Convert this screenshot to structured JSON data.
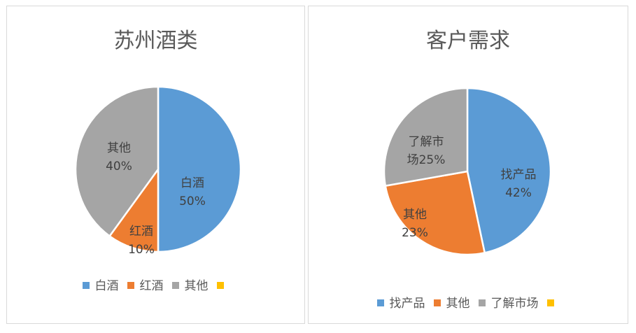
{
  "colors": {
    "blue": "#5b9bd5",
    "orange": "#ed7d31",
    "gray": "#a5a5a5",
    "yellow": "#ffc000"
  },
  "chart_data": [
    {
      "type": "pie",
      "title": "苏州酒类",
      "legend": [
        "白酒",
        "红酒",
        "其他",
        ""
      ],
      "legend_colors": [
        "#5b9bd5",
        "#ed7d31",
        "#a5a5a5",
        "#ffc000"
      ],
      "legend_position": "bottom",
      "slices": [
        {
          "name": "白酒",
          "value": 50,
          "label": "50%",
          "color": "#5b9bd5"
        },
        {
          "name": "红酒",
          "value": 10,
          "label": "10%",
          "color": "#ed7d31"
        },
        {
          "name": "其他",
          "value": 40,
          "label": "40%",
          "color": "#a5a5a5"
        }
      ]
    },
    {
      "type": "pie",
      "title": "客户需求",
      "legend": [
        "找产品",
        "其他",
        "了解市场",
        ""
      ],
      "legend_colors": [
        "#5b9bd5",
        "#ed7d31",
        "#a5a5a5",
        "#ffc000"
      ],
      "legend_position": "bottom",
      "slices": [
        {
          "name": "找产品",
          "value": 42,
          "label": "42%",
          "color": "#5b9bd5"
        },
        {
          "name": "其他",
          "value": 23,
          "label": "23%",
          "color": "#ed7d31"
        },
        {
          "name": "了解市场",
          "value": 25,
          "label": "25%",
          "color": "#a5a5a5"
        }
      ]
    }
  ]
}
